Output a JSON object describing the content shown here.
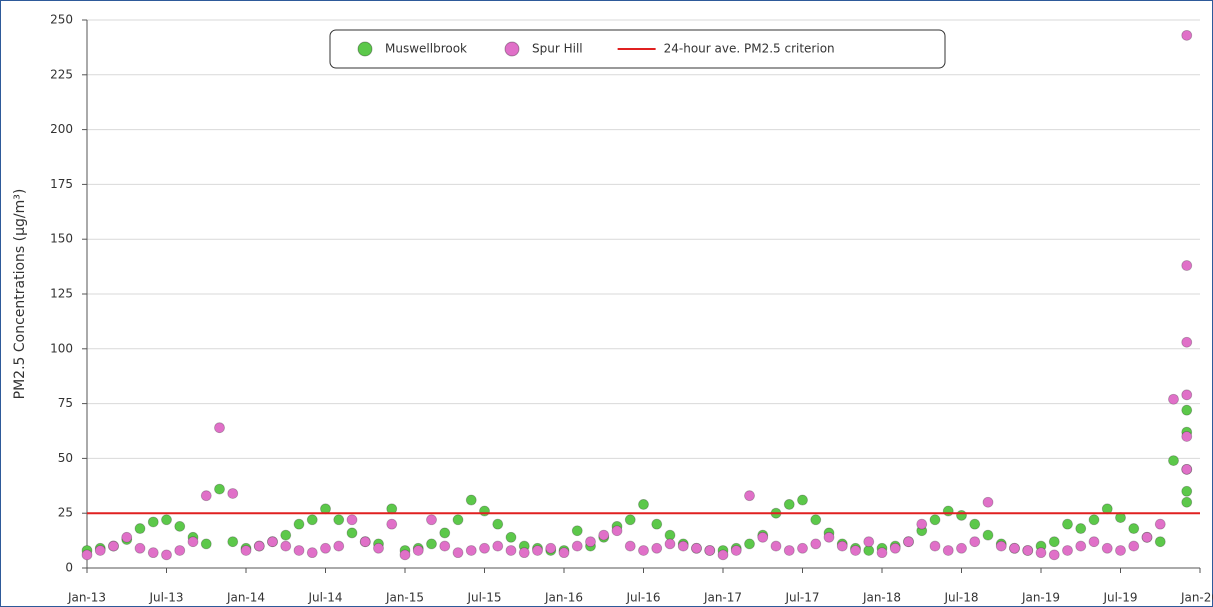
{
  "chart_data": {
    "type": "scatter",
    "y_label": "PM2.5 Concentrations (µg/m³)",
    "ylim": [
      0,
      250
    ],
    "yticks": [
      0,
      25,
      50,
      75,
      100,
      125,
      150,
      175,
      200,
      225,
      250
    ],
    "grid": true,
    "xlim": [
      "2013-01",
      "2020-01"
    ],
    "xticks": [
      {
        "value": "2013-01",
        "label": "Jan-13"
      },
      {
        "value": "2013-07",
        "label": "Jul-13"
      },
      {
        "value": "2014-01",
        "label": "Jan-14"
      },
      {
        "value": "2014-07",
        "label": "Jul-14"
      },
      {
        "value": "2015-01",
        "label": "Jan-15"
      },
      {
        "value": "2015-07",
        "label": "Jul-15"
      },
      {
        "value": "2016-01",
        "label": "Jan-16"
      },
      {
        "value": "2016-07",
        "label": "Jul-16"
      },
      {
        "value": "2017-01",
        "label": "Jan-17"
      },
      {
        "value": "2017-07",
        "label": "Jul-17"
      },
      {
        "value": "2018-01",
        "label": "Jan-18"
      },
      {
        "value": "2018-07",
        "label": "Jul-18"
      },
      {
        "value": "2019-01",
        "label": "Jan-19"
      },
      {
        "value": "2019-07",
        "label": "Jul-19"
      },
      {
        "value": "2020-01",
        "label": "Jan-20"
      }
    ],
    "legend": "top",
    "series": [
      {
        "name": "Muswellbrook",
        "color": "#5cc84a",
        "x": [
          "2013-01",
          "2013-02",
          "2013-03",
          "2013-04",
          "2013-05",
          "2013-06",
          "2013-07",
          "2013-08",
          "2013-09",
          "2013-10",
          "2013-11",
          "2013-12",
          "2014-01",
          "2014-02",
          "2014-03",
          "2014-04",
          "2014-05",
          "2014-06",
          "2014-07",
          "2014-08",
          "2014-09",
          "2014-10",
          "2014-11",
          "2014-12",
          "2015-01",
          "2015-02",
          "2015-03",
          "2015-04",
          "2015-05",
          "2015-06",
          "2015-07",
          "2015-08",
          "2015-09",
          "2015-10",
          "2015-11",
          "2015-12",
          "2016-01",
          "2016-02",
          "2016-03",
          "2016-04",
          "2016-05",
          "2016-06",
          "2016-07",
          "2016-08",
          "2016-09",
          "2016-10",
          "2016-11",
          "2016-12",
          "2017-01",
          "2017-02",
          "2017-03",
          "2017-04",
          "2017-05",
          "2017-06",
          "2017-07",
          "2017-08",
          "2017-09",
          "2017-10",
          "2017-11",
          "2017-12",
          "2018-01",
          "2018-02",
          "2018-03",
          "2018-04",
          "2018-05",
          "2018-06",
          "2018-07",
          "2018-08",
          "2018-09",
          "2018-10",
          "2018-11",
          "2018-12",
          "2019-01",
          "2019-02",
          "2019-03",
          "2019-04",
          "2019-05",
          "2019-06",
          "2019-07",
          "2019-08",
          "2019-09",
          "2019-10",
          "2019-11",
          "2019-12",
          "2019-12",
          "2019-12",
          "2019-12",
          "2019-12"
        ],
        "values": [
          8,
          9,
          10,
          13,
          18,
          21,
          22,
          19,
          14,
          11,
          36,
          12,
          9,
          10,
          12,
          15,
          20,
          22,
          27,
          22,
          16,
          12,
          11,
          27,
          8,
          9,
          11,
          16,
          22,
          31,
          26,
          20,
          14,
          10,
          9,
          8,
          8,
          17,
          10,
          14,
          19,
          22,
          29,
          20,
          15,
          11,
          9,
          8,
          8,
          9,
          11,
          15,
          25,
          29,
          31,
          22,
          16,
          11,
          9,
          8,
          9,
          10,
          12,
          17,
          22,
          26,
          24,
          20,
          15,
          11,
          9,
          8,
          10,
          12,
          20,
          18,
          22,
          27,
          23,
          18,
          14,
          12,
          49,
          72,
          62,
          45,
          30,
          35
        ]
      },
      {
        "name": "Spur Hill",
        "color": "#e070c8",
        "x": [
          "2013-01",
          "2013-02",
          "2013-03",
          "2013-04",
          "2013-05",
          "2013-06",
          "2013-07",
          "2013-08",
          "2013-09",
          "2013-10",
          "2013-11",
          "2013-12",
          "2014-01",
          "2014-02",
          "2014-03",
          "2014-04",
          "2014-05",
          "2014-06",
          "2014-07",
          "2014-08",
          "2014-09",
          "2014-10",
          "2014-11",
          "2014-12",
          "2015-01",
          "2015-02",
          "2015-03",
          "2015-04",
          "2015-05",
          "2015-06",
          "2015-07",
          "2015-08",
          "2015-09",
          "2015-10",
          "2015-11",
          "2015-12",
          "2016-01",
          "2016-02",
          "2016-03",
          "2016-04",
          "2016-05",
          "2016-06",
          "2016-07",
          "2016-08",
          "2016-09",
          "2016-10",
          "2016-11",
          "2016-12",
          "2017-01",
          "2017-02",
          "2017-03",
          "2017-04",
          "2017-05",
          "2017-06",
          "2017-07",
          "2017-08",
          "2017-09",
          "2017-10",
          "2017-11",
          "2017-12",
          "2018-01",
          "2018-02",
          "2018-03",
          "2018-04",
          "2018-05",
          "2018-06",
          "2018-07",
          "2018-08",
          "2018-09",
          "2018-10",
          "2018-11",
          "2018-12",
          "2019-01",
          "2019-02",
          "2019-03",
          "2019-04",
          "2019-05",
          "2019-06",
          "2019-07",
          "2019-08",
          "2019-09",
          "2019-10",
          "2019-11",
          "2019-12",
          "2019-12",
          "2019-12",
          "2019-12",
          "2019-12",
          "2019-12"
        ],
        "values": [
          6,
          8,
          10,
          14,
          9,
          7,
          6,
          8,
          12,
          33,
          64,
          34,
          8,
          10,
          12,
          10,
          8,
          7,
          9,
          10,
          22,
          12,
          9,
          20,
          6,
          8,
          22,
          10,
          7,
          8,
          9,
          10,
          8,
          7,
          8,
          9,
          7,
          10,
          12,
          15,
          17,
          10,
          8,
          9,
          11,
          10,
          9,
          8,
          6,
          8,
          33,
          14,
          10,
          8,
          9,
          11,
          14,
          10,
          8,
          12,
          7,
          9,
          12,
          20,
          10,
          8,
          9,
          12,
          30,
          10,
          9,
          8,
          7,
          6,
          8,
          10,
          12,
          9,
          8,
          10,
          14,
          20,
          77,
          243,
          138,
          103,
          79,
          60,
          45
        ]
      }
    ],
    "reference_line": {
      "name": "24-hour ave. PM2.5 criterion",
      "value": 25,
      "color": "#e02020"
    }
  }
}
